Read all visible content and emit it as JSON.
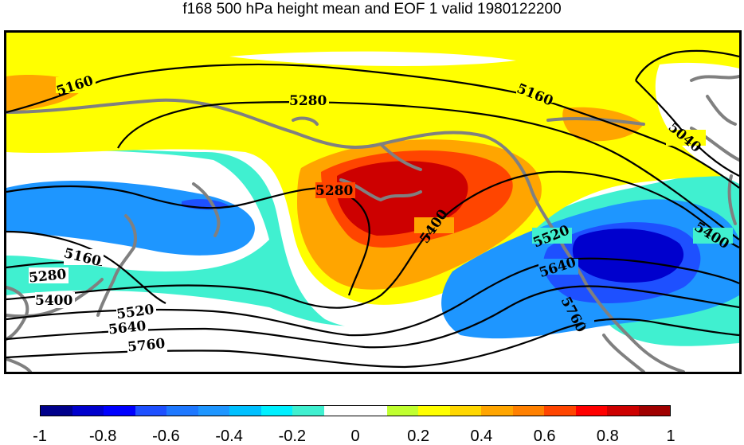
{
  "title": "f168 500 hPa height mean and EOF 1 valid 1980122200",
  "contour_labels": [
    "5160",
    "5280",
    "5160",
    "5040",
    "5280",
    "5400",
    "5520",
    "5640",
    "5400",
    "5760",
    "5160",
    "5280",
    "5400",
    "5520",
    "5640",
    "5760"
  ],
  "colorbar": {
    "colors": [
      "#00008b",
      "#0000cd",
      "#0000ff",
      "#1e50ff",
      "#1e78ff",
      "#1e96ff",
      "#00c0ff",
      "#00f0ff",
      "#40f0d0",
      "#ffffff",
      "#ffffff",
      "#c0ff30",
      "#ffff00",
      "#ffd700",
      "#ffa500",
      "#ff8000",
      "#ff4500",
      "#ff0000",
      "#cd0000",
      "#a00000"
    ],
    "tick_labels": [
      "-1",
      "-0.8",
      "-0.6",
      "-0.4",
      "-0.2",
      "0",
      "0.2",
      "0.4",
      "0.6",
      "0.8",
      "1"
    ]
  }
}
